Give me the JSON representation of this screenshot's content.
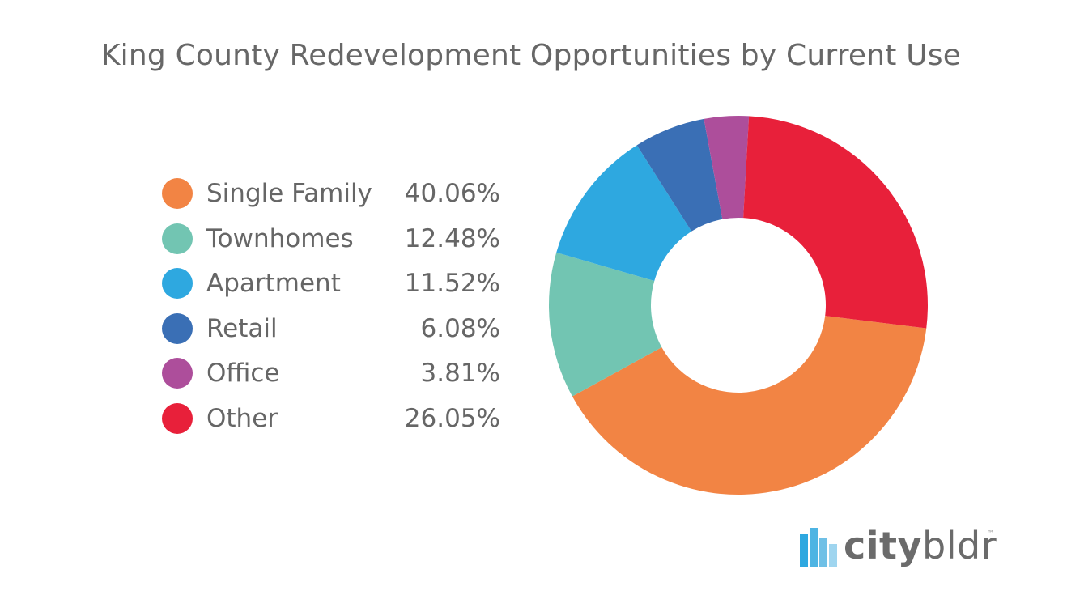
{
  "chart_data": {
    "type": "pie",
    "title": "King County Redevelopment Opportunities by Current Use",
    "categories": [
      "Single Family",
      "Townhomes",
      "Apartment",
      "Retail",
      "Office",
      "Other"
    ],
    "values": [
      40.06,
      12.48,
      11.52,
      6.08,
      3.81,
      26.05
    ],
    "value_labels": [
      "40.06%",
      "12.48%",
      "11.52%",
      "6.08%",
      "3.81%",
      "26.05%"
    ],
    "colors": [
      "#f28444",
      "#72c5b2",
      "#2ea8e0",
      "#3a6fb5",
      "#ad4e9b",
      "#e8203a"
    ],
    "legend_position": "left",
    "donut": true
  },
  "logo": {
    "part_a": "city",
    "part_b": "bldr",
    "tm": "™",
    "bar_colors": [
      "#2ea8e0",
      "#4db4e3",
      "#6fc0e6",
      "#9fd5ef"
    ]
  }
}
